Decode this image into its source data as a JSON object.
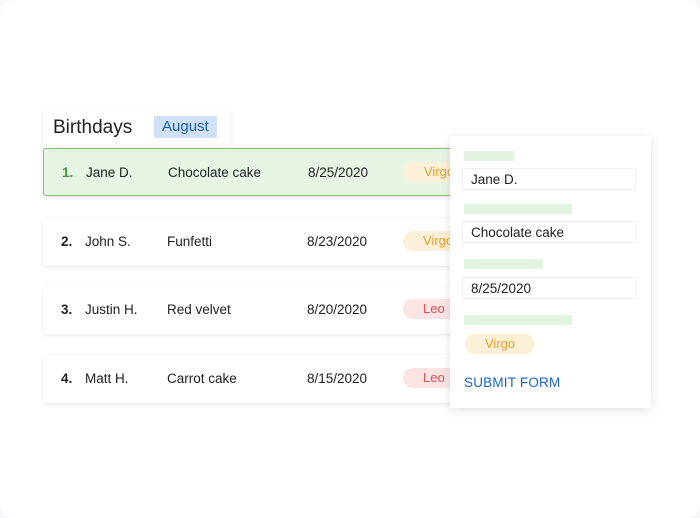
{
  "header": {
    "title": "Birthdays",
    "month": "August"
  },
  "rows": [
    {
      "num": "1.",
      "name": "Jane D.",
      "cake": "Chocolate cake",
      "date": "8/25/2020",
      "sign": "Virgo"
    },
    {
      "num": "2.",
      "name": "John S.",
      "cake": "Funfetti",
      "date": "8/23/2020",
      "sign": "Virgo"
    },
    {
      "num": "3.",
      "name": "Justin H.",
      "cake": "Red velvet",
      "date": "8/20/2020",
      "sign": "Leo"
    },
    {
      "num": "4.",
      "name": "Matt H.",
      "cake": "Carrot cake",
      "date": "8/15/2020",
      "sign": "Leo"
    }
  ],
  "form": {
    "name": "Jane D.",
    "cake": "Chocolate cake",
    "date": "8/25/2020",
    "sign": "Virgo",
    "submit": "SUBMIT FORM"
  },
  "colors": {
    "selected_row": "#e8f5e4",
    "virgo": "#e8a02a",
    "leo": "#d9534f",
    "accent": "#1a66c9"
  }
}
